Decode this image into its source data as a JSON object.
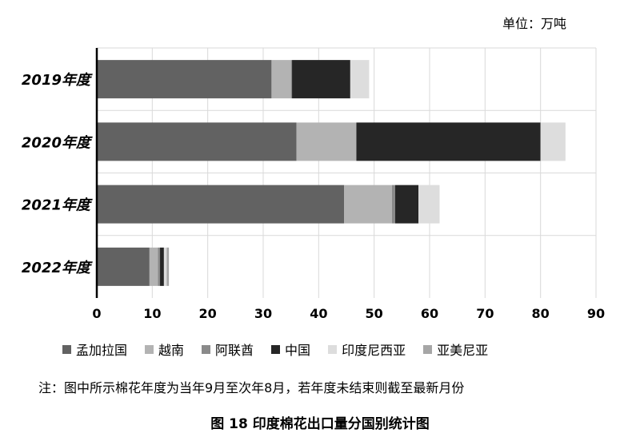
{
  "chart_data": {
    "type": "bar",
    "orientation": "horizontal",
    "stacked": true,
    "categories": [
      "2019年度",
      "2020年度",
      "2021年度",
      "2022年度"
    ],
    "series": [
      {
        "name": "孟加拉国",
        "color": "#626262",
        "values": [
          31.5,
          36.0,
          44.6,
          9.5
        ]
      },
      {
        "name": "越南",
        "color": "#b3b3b3",
        "values": [
          3.5,
          10.8,
          8.6,
          1.5
        ]
      },
      {
        "name": "阿联酋",
        "color": "#8a8a8a",
        "values": [
          0.2,
          0.0,
          0.6,
          0.4
        ]
      },
      {
        "name": "中国",
        "color": "#262626",
        "values": [
          10.5,
          33.2,
          4.2,
          0.7
        ]
      },
      {
        "name": "印度尼西亚",
        "color": "#dddddd",
        "values": [
          3.4,
          4.5,
          3.8,
          0.5
        ]
      },
      {
        "name": "亚美尼亚",
        "color": "#a6a6a6",
        "values": [
          0.0,
          0.0,
          0.0,
          0.4
        ]
      }
    ],
    "xlim": [
      0,
      90
    ],
    "xticks": [
      "0",
      "10",
      "20",
      "30",
      "40",
      "50",
      "60",
      "70",
      "80",
      "90"
    ],
    "unit_label": "单位：万吨",
    "legend_position": "bottom",
    "grid": "vertical",
    "note": "注：图中所示棉花年度为当年9月至次年8月，若年度未结束则截至最新月份",
    "caption": "图 18    印度棉花出口量分国别统计图"
  }
}
